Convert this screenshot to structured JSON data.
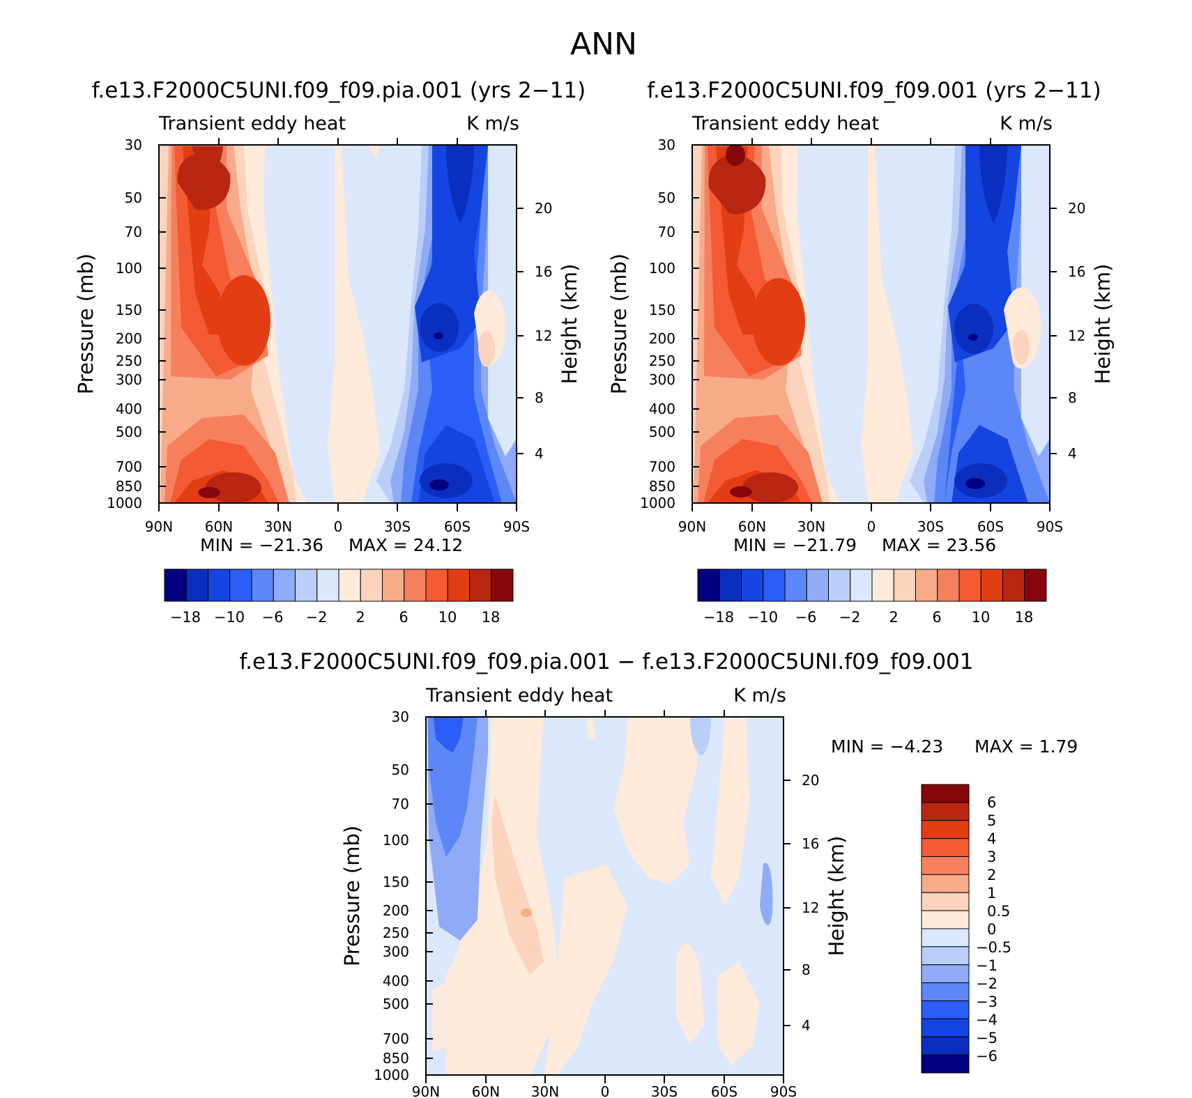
{
  "figure_title": "ANN",
  "colors": {
    "scale_main": [
      "#000080",
      "#0a2fbe",
      "#1545e0",
      "#2b5ef6",
      "#5d87f6",
      "#8faaf7",
      "#b9cff9",
      "#dbe7fb",
      "#fdeadb",
      "#fcd3bd",
      "#f8ab89",
      "#f6805d",
      "#f45a34",
      "#e33d14",
      "#b92611",
      "#85070c"
    ],
    "scale_diff": [
      "#000080",
      "#0a2fbe",
      "#1545e0",
      "#2b5ef6",
      "#5d87f6",
      "#8faaf7",
      "#b9cff9",
      "#dbe7fb",
      "#fdeadb",
      "#fcd3bd",
      "#f8ab89",
      "#f6805d",
      "#f45a34",
      "#e33d14",
      "#b92611",
      "#85070c"
    ]
  },
  "chart_data": [
    {
      "type": "heatmap",
      "panel": "case",
      "title": "f.e13.F2000C5UNI.f09_f09.pia.001 (yrs 2-11)",
      "field_name": "Transient eddy heat",
      "units": "K m/s",
      "ylabel": "Pressure (mb)",
      "ylabel_right": "Height (km)",
      "x": [
        "90N",
        "60N",
        "30N",
        "0",
        "30S",
        "60S",
        "90S"
      ],
      "y_ticks": [
        "30",
        "50",
        "70",
        "100",
        "150",
        "200",
        "250",
        "300",
        "400",
        "500",
        "700",
        "850",
        "1000"
      ],
      "height_ticks": [
        "4",
        "8",
        "12",
        "16",
        "20"
      ],
      "min_label": "MIN = -21.36",
      "max_label": "MAX = 24.12",
      "min": -21.36,
      "max": 24.12,
      "colorbar_labels": [
        "-18",
        "-10",
        "-6",
        "-2",
        "2",
        "6",
        "10",
        "18"
      ]
    },
    {
      "type": "heatmap",
      "panel": "control",
      "title": "f.e13.F2000C5UNI.f09_f09.001 (yrs 2-11)",
      "field_name": "Transient eddy heat",
      "units": "K m/s",
      "ylabel": "Pressure (mb)",
      "ylabel_right": "Height (km)",
      "x": [
        "90N",
        "60N",
        "30N",
        "0",
        "30S",
        "60S",
        "90S"
      ],
      "y_ticks": [
        "30",
        "50",
        "70",
        "100",
        "150",
        "200",
        "250",
        "300",
        "400",
        "500",
        "700",
        "850",
        "1000"
      ],
      "height_ticks": [
        "4",
        "8",
        "12",
        "16",
        "20"
      ],
      "min_label": "MIN = -21.79",
      "max_label": "MAX = 23.56",
      "min": -21.79,
      "max": 23.56,
      "colorbar_labels": [
        "-18",
        "-10",
        "-6",
        "-2",
        "2",
        "6",
        "10",
        "18"
      ]
    },
    {
      "type": "heatmap",
      "panel": "difference",
      "title": "f.e13.F2000C5UNI.f09_f09.pia.001 - f.e13.F2000C5UNI.f09_f09.001",
      "field_name": "Transient eddy heat",
      "units": "K m/s",
      "ylabel": "Pressure (mb)",
      "ylabel_right": "Height (km)",
      "x": [
        "90N",
        "60N",
        "30N",
        "0",
        "30S",
        "60S",
        "90S"
      ],
      "y_ticks": [
        "30",
        "50",
        "70",
        "100",
        "150",
        "200",
        "250",
        "300",
        "400",
        "500",
        "700",
        "850",
        "1000"
      ],
      "height_ticks": [
        "4",
        "8",
        "12",
        "16",
        "20"
      ],
      "min_label": "MIN = -4.23",
      "max_label": "MAX = 1.79",
      "min": -4.23,
      "max": 1.79,
      "colorbar_labels": [
        "6",
        "5",
        "4",
        "3",
        "2",
        "1",
        "0.5",
        "0",
        "-0.5",
        "-1",
        "-2",
        "-3",
        "-4",
        "-5",
        "-6"
      ]
    }
  ]
}
